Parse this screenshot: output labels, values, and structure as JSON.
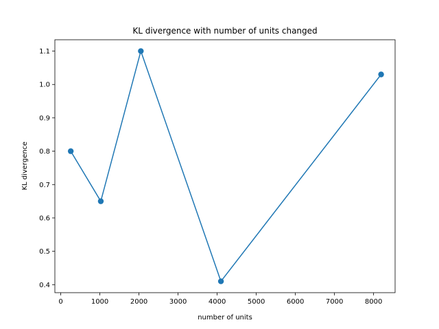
{
  "chart_data": {
    "type": "line",
    "title": "KL divergence with number of units changed",
    "xlabel": "number of units",
    "ylabel": "KL divergence",
    "xlim": [
      -150,
      8550
    ],
    "ylim": [
      0.376,
      1.134
    ],
    "xticks": [
      0,
      1000,
      2000,
      3000,
      4000,
      5000,
      6000,
      7000,
      8000
    ],
    "yticks": [
      0.4,
      0.5,
      0.6,
      0.7,
      0.8,
      0.9,
      1.0,
      1.1
    ],
    "x_tick_labels": [
      "0",
      "1000",
      "2000",
      "3000",
      "4000",
      "5000",
      "6000",
      "7000",
      "8000"
    ],
    "y_tick_labels": [
      "0.4",
      "0.5",
      "0.6",
      "0.7",
      "0.8",
      "0.9",
      "1.0",
      "1.1"
    ],
    "grid": false,
    "series": [
      {
        "x": [
          256,
          1024,
          2048,
          4096,
          8192
        ],
        "y": [
          0.8,
          0.65,
          1.1,
          0.41,
          1.03
        ],
        "color": "#1f77b4",
        "marker": "circle"
      }
    ]
  }
}
